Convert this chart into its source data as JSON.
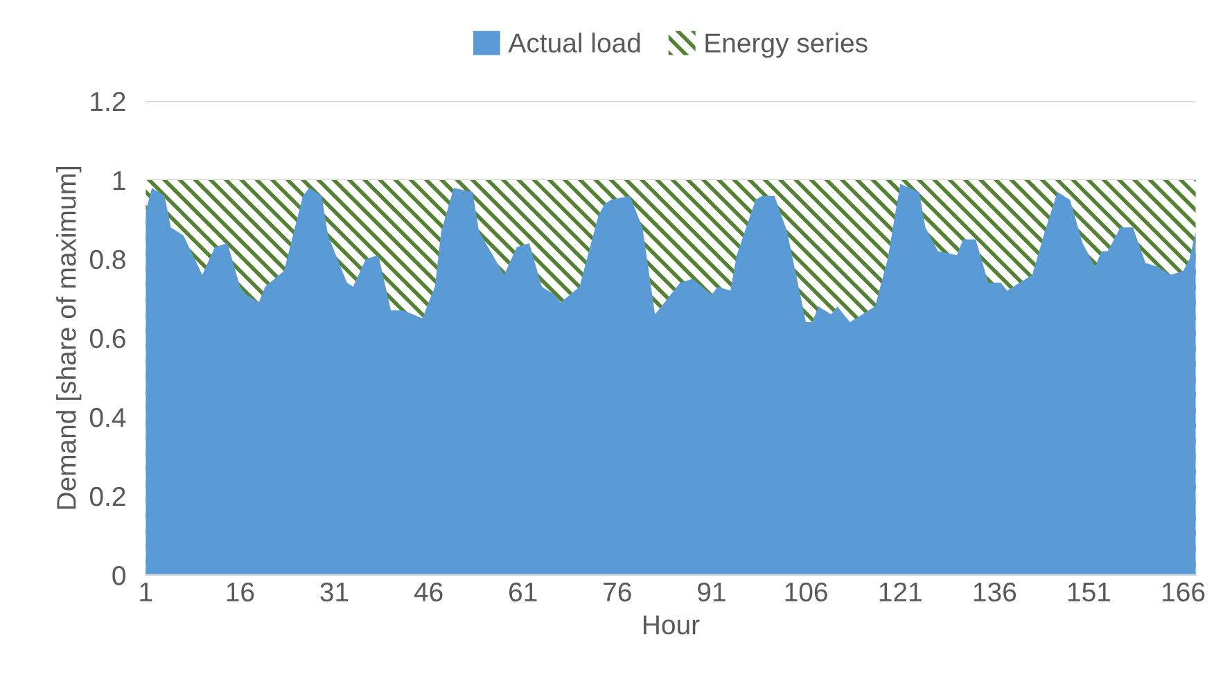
{
  "chart_data": {
    "type": "area",
    "xlabel": "Hour",
    "ylabel": "Demand [share of maximum]",
    "legend": "top",
    "grid": "y",
    "xlim": [
      1,
      168
    ],
    "xticks": [
      1,
      16,
      31,
      46,
      61,
      76,
      91,
      106,
      121,
      136,
      151,
      166
    ],
    "ylim": [
      0,
      1.2
    ],
    "yticks": [
      0,
      0.2,
      0.4,
      0.6,
      0.8,
      1,
      1.2
    ],
    "series": [
      {
        "name": "Energy series",
        "color": "#548235",
        "x": [
          1,
          168
        ],
        "values": [
          1,
          1
        ]
      },
      {
        "name": "Actual load",
        "color": "#5b9bd5",
        "x": [
          1,
          2,
          4,
          5,
          7,
          10,
          12,
          14,
          16,
          17,
          19,
          20,
          23,
          26,
          27,
          29,
          30,
          33,
          34,
          36,
          38,
          40,
          42,
          45,
          47,
          48,
          50,
          53,
          54,
          58,
          60,
          62,
          64,
          66,
          67,
          70,
          73,
          74,
          75,
          78,
          80,
          82,
          84,
          86,
          88,
          91,
          92,
          94,
          95,
          98,
          99,
          101,
          103,
          106,
          107,
          108,
          110,
          111,
          113,
          117,
          119,
          121,
          124,
          125,
          127,
          130,
          131,
          133,
          135,
          137,
          138,
          140,
          142,
          144,
          146,
          148,
          150,
          152,
          153,
          154,
          156,
          158,
          160,
          162,
          164,
          166,
          167,
          168
        ],
        "values": [
          0.92,
          0.98,
          0.96,
          0.88,
          0.86,
          0.76,
          0.83,
          0.84,
          0.73,
          0.71,
          0.69,
          0.73,
          0.77,
          0.96,
          0.98,
          0.96,
          0.86,
          0.74,
          0.73,
          0.8,
          0.81,
          0.67,
          0.67,
          0.65,
          0.73,
          0.87,
          0.98,
          0.97,
          0.87,
          0.76,
          0.83,
          0.84,
          0.73,
          0.71,
          0.69,
          0.73,
          0.91,
          0.94,
          0.95,
          0.96,
          0.88,
          0.66,
          0.7,
          0.74,
          0.75,
          0.71,
          0.73,
          0.72,
          0.81,
          0.95,
          0.96,
          0.96,
          0.87,
          0.64,
          0.64,
          0.68,
          0.66,
          0.68,
          0.64,
          0.68,
          0.8,
          0.99,
          0.97,
          0.88,
          0.82,
          0.81,
          0.85,
          0.85,
          0.74,
          0.74,
          0.72,
          0.74,
          0.76,
          0.87,
          0.97,
          0.95,
          0.84,
          0.78,
          0.82,
          0.82,
          0.88,
          0.88,
          0.79,
          0.78,
          0.76,
          0.77,
          0.8,
          0.87
        ]
      }
    ]
  }
}
